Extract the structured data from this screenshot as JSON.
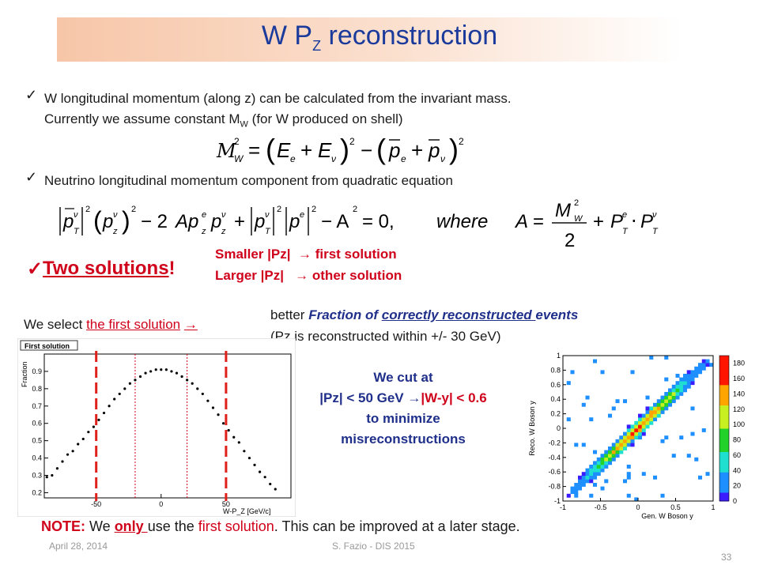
{
  "slide": {
    "title_main": "W P",
    "title_sub": "Z",
    "title_rest": " reconstruction",
    "bullet1_line1": "W longitudinal momentum (along z) can be calculated from the invariant mass.",
    "bullet1_line2a": "Currently we assume constant M",
    "bullet1_line2_sub": "W",
    "bullet1_line2b": " (for W produced on shell)",
    "bullet2": "Neutrino longitudinal momentum component from quadratic equation",
    "two_solutions": "Two solutions",
    "two_solutions_bang": "!",
    "smaller": "Smaller |Pz|",
    "first_solution": "first solution",
    "larger": "Larger |Pz|",
    "other_solution": "other solution",
    "select_text": "We select ",
    "select_link": "the first solution",
    "better_a": "better ",
    "better_b": "Fraction of ",
    "better_c": "correctly reconstructed ",
    "better_d": "events",
    "pz_within": "(Pz is reconstructed within +/- 30 GeV)",
    "cut_line1": "We cut at",
    "cut_line2a": "|Pz| < 50 GeV ",
    "cut_line2b": "|W-y| < 0.6",
    "cut_line3": "to minimize",
    "cut_line4": "misreconstructions",
    "note_label": "NOTE:",
    "note_a": " We ",
    "note_only": "only ",
    "note_b": "use the ",
    "note_first": "first solution",
    "note_c": ". This can be improved at a later stage.",
    "footer_date": "April 28, 2014",
    "footer_author": "S. Fazio - DIS 2015",
    "page_number": "33",
    "arrow": "→"
  },
  "chart_data": [
    {
      "type": "scatter",
      "title": "First solution",
      "xlabel": "W-P_Z [GeV/c]",
      "ylabel": "Fraction",
      "xlim": [
        -90,
        100
      ],
      "ylim": [
        0.17,
        1.0
      ],
      "xticks": [
        -50,
        0,
        50
      ],
      "yticks": [
        0.2,
        0.3,
        0.4,
        0.5,
        0.6,
        0.7,
        0.8,
        0.9
      ],
      "cut_lines": [
        -50,
        50
      ],
      "dotted_lines": [
        -20,
        20
      ],
      "x": [
        -88,
        -84,
        -80,
        -76,
        -72,
        -68,
        -64,
        -60,
        -56,
        -52,
        -48,
        -44,
        -40,
        -36,
        -32,
        -28,
        -24,
        -20,
        -16,
        -12,
        -8,
        -4,
        0,
        4,
        8,
        12,
        16,
        20,
        24,
        28,
        32,
        36,
        40,
        44,
        48,
        52,
        56,
        60,
        64,
        68,
        72,
        76,
        80,
        84,
        88
      ],
      "y": [
        0.29,
        0.3,
        0.34,
        0.38,
        0.42,
        0.44,
        0.48,
        0.51,
        0.55,
        0.58,
        0.62,
        0.66,
        0.7,
        0.74,
        0.77,
        0.8,
        0.83,
        0.85,
        0.87,
        0.89,
        0.9,
        0.91,
        0.91,
        0.91,
        0.9,
        0.89,
        0.87,
        0.85,
        0.83,
        0.8,
        0.77,
        0.73,
        0.69,
        0.65,
        0.6,
        0.56,
        0.52,
        0.49,
        0.44,
        0.4,
        0.36,
        0.32,
        0.29,
        0.25,
        0.22
      ]
    },
    {
      "type": "heatmap",
      "xlabel": "Gen. W Boson y",
      "ylabel": "Reco. W Boson y",
      "xlim": [
        -1,
        1
      ],
      "ylim": [
        -1,
        1
      ],
      "xticks": [
        -1,
        -0.5,
        0,
        0.5,
        1
      ],
      "yticks": [
        -1,
        -0.8,
        -0.6,
        -0.4,
        -0.2,
        0,
        0.2,
        0.4,
        0.6,
        0.8,
        1
      ],
      "zticks": [
        0,
        20,
        40,
        60,
        80,
        100,
        120,
        140,
        160,
        180
      ],
      "zmax": 190
    }
  ]
}
